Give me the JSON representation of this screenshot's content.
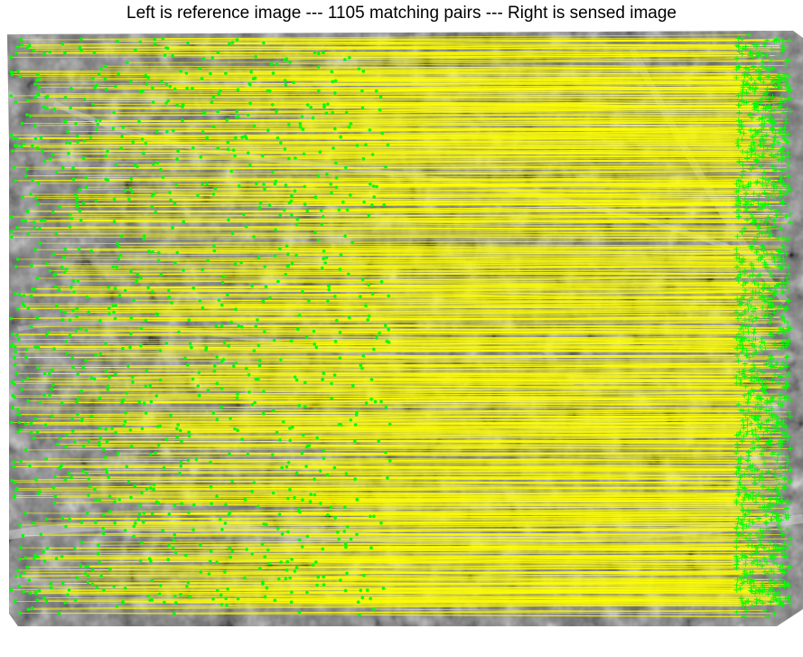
{
  "figure": {
    "title": "Left is reference image --- 1105 matching pairs --- Right is sensed image"
  },
  "matches": {
    "pair_count": 1105,
    "line_color": "#ffff00",
    "reference_marker_color": "#00ff00",
    "sensed_marker_color": "#00ff00",
    "reference_marker": "dot",
    "sensed_marker": "plus"
  },
  "imagery": {
    "content": "grayscale aerial photograph",
    "background_color": "#ffffff"
  }
}
